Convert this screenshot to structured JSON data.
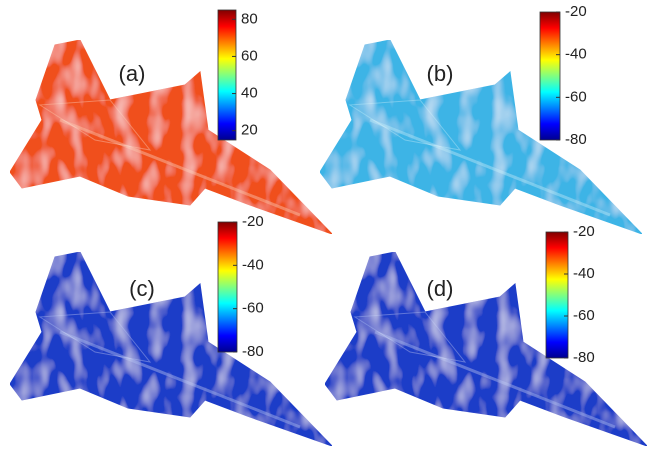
{
  "chart_data": [
    {
      "type": "surface",
      "label": "(a)",
      "color": "#f0501e",
      "clim": [
        15,
        85
      ],
      "cticks": [
        20,
        40,
        60,
        80
      ]
    },
    {
      "type": "surface",
      "label": "(b)",
      "color": "#3cb4e6",
      "clim": [
        -80,
        -20
      ],
      "cticks": [
        -20,
        -40,
        -60,
        -80
      ]
    },
    {
      "type": "surface",
      "label": "(c)",
      "color": "#1e3cc8",
      "clim": [
        -80,
        -20
      ],
      "cticks": [
        -20,
        -40,
        -60,
        -80
      ]
    },
    {
      "type": "surface",
      "label": "(d)",
      "color": "#1e3cc8",
      "clim": [
        -80,
        -20
      ],
      "cticks": [
        -20,
        -40,
        -60,
        -80
      ]
    }
  ]
}
